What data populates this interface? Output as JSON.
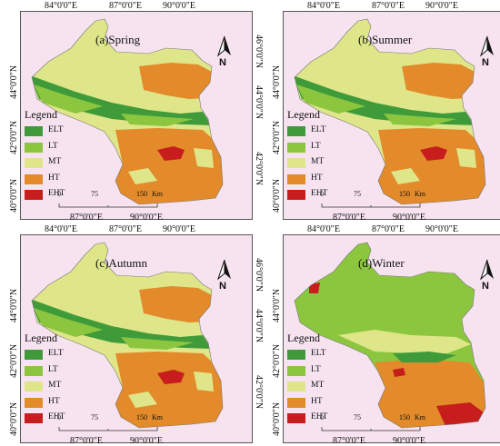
{
  "colors": {
    "ELT": "#3f9b3a",
    "LT": "#8cc63f",
    "MT": "#dfe68a",
    "HT": "#e38a2a",
    "EHT": "#c81d1d",
    "outside": "#f7e3ef"
  },
  "legend": {
    "title": "Legend",
    "items": [
      {
        "key": "ELT",
        "label": "ELT"
      },
      {
        "key": "LT",
        "label": "LT"
      },
      {
        "key": "MT",
        "label": "MT"
      },
      {
        "key": "HT",
        "label": "HT"
      },
      {
        "key": "EHT",
        "label": "EHT"
      }
    ]
  },
  "axes": {
    "top": [
      "84°0'0\"E",
      "87°0'0\"E",
      "90°0'0\"E"
    ],
    "bottom": [
      "87°0'0\"E",
      "90°0'0\"E"
    ],
    "left": [
      "44°0'0\"N",
      "42°0'0\"N",
      "40°0'0\"N"
    ],
    "right": [
      "46°0'0\"N",
      "44°0'0\"N",
      "42°0'0\"N"
    ]
  },
  "scale_bar": {
    "labels": [
      "0",
      "75",
      "150",
      "Km"
    ]
  },
  "north_label": "N",
  "panels": [
    {
      "title": "(a)Spring",
      "dominant": "MT"
    },
    {
      "title": "(b)Summer",
      "dominant": "MT"
    },
    {
      "title": "(c)Autumn",
      "dominant": "MT"
    },
    {
      "title": "(d)Winter",
      "dominant": "LT"
    }
  ]
}
